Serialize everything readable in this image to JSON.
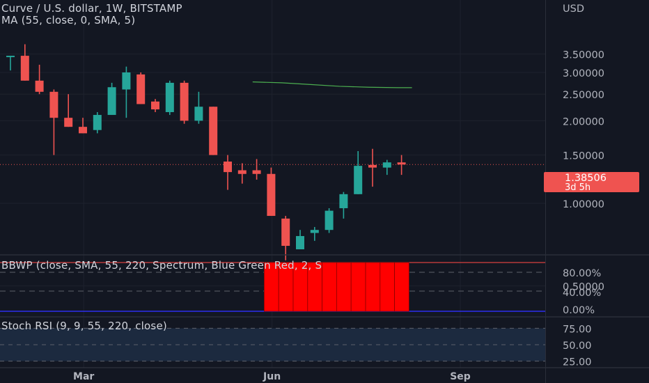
{
  "header": {
    "title": "Curve / U.S. dollar, 1W, BITSTAMP",
    "ma_label": "MA (55, close, 0, SMA, 5)"
  },
  "price_scale": {
    "currency": "USD",
    "last_price": "1.38506",
    "countdown": "3d 5h"
  },
  "indicators": {
    "bbwp_label": "BBWP (close, SMA, 55, 220, Spectrum, Blue Green Red, 2, S",
    "stoch_label": "Stoch RSI (9, 9, 55, 220, close)"
  },
  "colors": {
    "background": "#131722",
    "up": "#26a69a",
    "down": "#ef5350",
    "ma": "#4caf50",
    "bbwp": "#ff0000",
    "stoch_band": "#1c2a3f",
    "grid": "#1e222d"
  },
  "chart_data": [
    {
      "type": "candlestick",
      "title": "Curve / U.S. dollar, 1W, BITSTAMP",
      "ylabel": "USD",
      "y_scale": "log",
      "ylim": [
        0.35,
        4.3
      ],
      "y_ticks": [
        0.5,
        1.0,
        1.5,
        2.0,
        2.5,
        3.0,
        3.5
      ],
      "y_tick_labels": [
        "0.50000",
        "1.00000",
        "1.50000",
        "2.00000",
        "2.50000",
        "3.00000",
        "3.50000"
      ],
      "x_ticks": [
        "Mar",
        "Jun",
        "Sep"
      ],
      "x_tick_week_index": [
        4,
        17,
        30
      ],
      "ohlc": [
        {
          "o": 3.45,
          "h": 3.45,
          "l": 3.05,
          "c": 3.45
        },
        {
          "o": 3.45,
          "h": 3.8,
          "l": 2.8,
          "c": 2.8
        },
        {
          "o": 2.8,
          "h": 3.2,
          "l": 2.5,
          "c": 2.55
        },
        {
          "o": 2.55,
          "h": 2.6,
          "l": 1.5,
          "c": 2.05
        },
        {
          "o": 2.05,
          "h": 2.5,
          "l": 1.9,
          "c": 1.9
        },
        {
          "o": 1.9,
          "h": 2.05,
          "l": 1.8,
          "c": 1.8
        },
        {
          "o": 1.85,
          "h": 2.15,
          "l": 1.8,
          "c": 2.1
        },
        {
          "o": 2.1,
          "h": 2.75,
          "l": 2.1,
          "c": 2.65
        },
        {
          "o": 2.6,
          "h": 3.15,
          "l": 2.05,
          "c": 3.0
        },
        {
          "o": 2.95,
          "h": 3.0,
          "l": 2.3,
          "c": 2.3
        },
        {
          "o": 2.35,
          "h": 2.4,
          "l": 2.15,
          "c": 2.2
        },
        {
          "o": 2.15,
          "h": 2.8,
          "l": 2.1,
          "c": 2.75
        },
        {
          "o": 2.75,
          "h": 2.8,
          "l": 1.95,
          "c": 2.0
        },
        {
          "o": 2.0,
          "h": 2.55,
          "l": 1.95,
          "c": 2.25
        },
        {
          "o": 2.25,
          "h": 2.25,
          "l": 1.5,
          "c": 1.5
        },
        {
          "o": 1.42,
          "h": 1.5,
          "l": 1.12,
          "c": 1.3
        },
        {
          "o": 1.32,
          "h": 1.4,
          "l": 1.18,
          "c": 1.28
        },
        {
          "o": 1.32,
          "h": 1.45,
          "l": 1.22,
          "c": 1.28
        },
        {
          "o": 1.28,
          "h": 1.35,
          "l": 0.9,
          "c": 0.9
        },
        {
          "o": 0.88,
          "h": 0.9,
          "l": 0.62,
          "c": 0.7
        },
        {
          "o": 0.68,
          "h": 0.8,
          "l": 0.68,
          "c": 0.76
        },
        {
          "o": 0.78,
          "h": 0.82,
          "l": 0.73,
          "c": 0.8
        },
        {
          "o": 0.8,
          "h": 0.96,
          "l": 0.78,
          "c": 0.94
        },
        {
          "o": 0.96,
          "h": 1.1,
          "l": 0.88,
          "c": 1.08
        },
        {
          "o": 1.08,
          "h": 1.55,
          "l": 1.08,
          "c": 1.37
        },
        {
          "o": 1.38,
          "h": 1.58,
          "l": 1.15,
          "c": 1.35
        },
        {
          "o": 1.35,
          "h": 1.44,
          "l": 1.27,
          "c": 1.41
        },
        {
          "o": 1.41,
          "h": 1.5,
          "l": 1.27,
          "c": 1.385
        }
      ],
      "ma_series": [
        {
          "week": 16,
          "value": 2.77
        },
        {
          "week": 18,
          "value": 2.75
        },
        {
          "week": 20,
          "value": 2.71
        },
        {
          "week": 22,
          "value": 2.67
        },
        {
          "week": 24,
          "value": 2.65
        },
        {
          "week": 26,
          "value": 2.64
        },
        {
          "week": 27,
          "value": 2.64
        }
      ]
    },
    {
      "type": "bar",
      "title": "BBWP (close, SMA, 55, 220, Spectrum, Blue Green Red, 2, S",
      "y_ticks": [
        0,
        40,
        80
      ],
      "y_tick_labels": [
        "0.00%",
        "40.00%",
        "80.00%"
      ],
      "ylim": [
        0,
        100
      ],
      "start_week": 18,
      "values": [
        100,
        100,
        100,
        100,
        100,
        100,
        100,
        100,
        100,
        100
      ]
    },
    {
      "type": "line",
      "title": "Stoch RSI (9, 9, 55, 220, close)",
      "y_ticks": [
        25,
        50,
        75
      ],
      "y_tick_labels": [
        "25.00",
        "50.00",
        "75.00"
      ],
      "ylim": [
        15,
        85
      ]
    }
  ]
}
